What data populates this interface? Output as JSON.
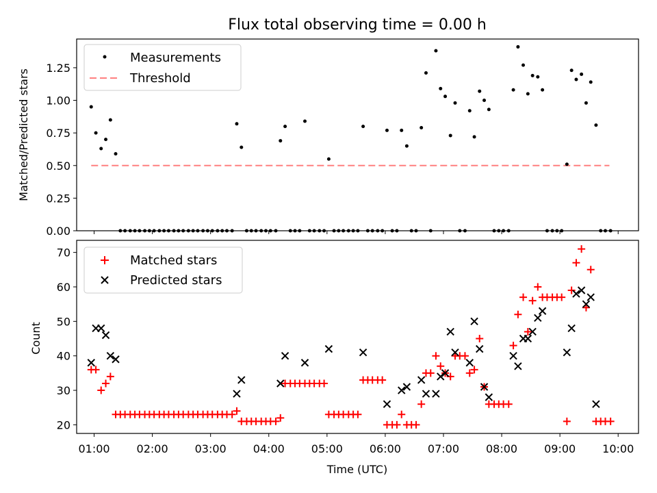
{
  "chart_data": [
    {
      "type": "scatter",
      "title": "Flux total observing time = 0.00 h",
      "xlabel": "",
      "ylabel": "Matched/Predicted stars",
      "xlim": [
        0.7,
        10.35
      ],
      "ylim": [
        0.0,
        1.47
      ],
      "yticks": [
        0.0,
        0.25,
        0.5,
        0.75,
        1.0,
        1.25
      ],
      "ytick_labels": [
        "0.00",
        "0.25",
        "0.50",
        "0.75",
        "1.00",
        "1.25"
      ],
      "legend": {
        "position": "upper-left",
        "entries": [
          "Measurements",
          "Threshold"
        ]
      },
      "threshold": {
        "name": "Threshold",
        "value": 0.5,
        "x_range": [
          0.95,
          9.85
        ],
        "color": "#ff7f7f",
        "style": "dashed"
      },
      "series": [
        {
          "name": "Measurements",
          "marker": "dot",
          "color": "#000000",
          "x": [
            0.95,
            1.03,
            1.12,
            1.2,
            1.28,
            1.37,
            1.45,
            1.53,
            1.62,
            1.7,
            1.78,
            1.87,
            1.95,
            2.03,
            2.12,
            2.2,
            2.28,
            2.37,
            2.45,
            2.53,
            2.62,
            2.7,
            2.78,
            2.87,
            2.95,
            3.03,
            3.12,
            3.2,
            3.28,
            3.37,
            3.45,
            3.53,
            3.62,
            3.7,
            3.78,
            3.87,
            3.95,
            4.03,
            4.12,
            4.2,
            4.28,
            4.37,
            4.45,
            4.53,
            4.62,
            4.7,
            4.78,
            4.87,
            4.95,
            5.03,
            5.12,
            5.2,
            5.28,
            5.37,
            5.45,
            5.53,
            5.62,
            5.7,
            5.78,
            5.87,
            5.95,
            6.03,
            6.12,
            6.2,
            6.28,
            6.37,
            6.45,
            6.53,
            6.62,
            6.7,
            6.78,
            6.87,
            6.95,
            7.03,
            7.12,
            7.2,
            7.28,
            7.37,
            7.45,
            7.53,
            7.62,
            7.7,
            7.78,
            7.87,
            7.95,
            8.03,
            8.12,
            8.2,
            8.28,
            8.37,
            8.45,
            8.53,
            8.62,
            8.7,
            8.78,
            8.87,
            8.95,
            9.03,
            9.12,
            9.2,
            9.28,
            9.37,
            9.45,
            9.53,
            9.62,
            9.7,
            9.78,
            9.87
          ],
          "y": [
            0.95,
            0.75,
            0.63,
            0.7,
            0.85,
            0.59,
            0.0,
            0.0,
            0.0,
            0.0,
            0.0,
            0.0,
            0.0,
            0.0,
            0.0,
            0.0,
            0.0,
            0.0,
            0.0,
            0.0,
            0.0,
            0.0,
            0.0,
            0.0,
            0.0,
            0.0,
            0.0,
            0.0,
            0.0,
            0.0,
            0.82,
            0.64,
            0.0,
            0.0,
            0.0,
            0.0,
            0.0,
            0.0,
            0.0,
            0.69,
            0.8,
            0.0,
            0.0,
            0.0,
            0.84,
            0.0,
            0.0,
            0.0,
            0.0,
            0.55,
            0.0,
            0.0,
            0.0,
            0.0,
            0.0,
            0.0,
            0.8,
            0.0,
            0.0,
            0.0,
            0.0,
            0.77,
            0.0,
            0.0,
            0.77,
            0.65,
            0.0,
            0.0,
            0.79,
            1.21,
            0.0,
            1.38,
            1.09,
            1.03,
            0.73,
            0.98,
            0.0,
            0.0,
            0.92,
            0.72,
            1.07,
            1.0,
            0.93,
            0.0,
            0.0,
            0.0,
            0.0,
            1.08,
            1.41,
            1.27,
            1.05,
            1.19,
            1.18,
            1.08,
            0.0,
            0.0,
            0.0,
            0.0,
            0.51,
            1.23,
            1.16,
            1.2,
            0.98,
            1.14,
            0.81,
            0.0,
            0.0,
            0.0
          ]
        }
      ]
    },
    {
      "type": "scatter",
      "title": "",
      "xlabel": "Time (UTC)",
      "ylabel": "Count",
      "xlim": [
        0.7,
        10.35
      ],
      "ylim": [
        17.5,
        73.5
      ],
      "xticks": [
        1,
        2,
        3,
        4,
        5,
        6,
        7,
        8,
        9,
        10
      ],
      "xtick_labels": [
        "01:00",
        "02:00",
        "03:00",
        "04:00",
        "05:00",
        "06:00",
        "07:00",
        "08:00",
        "09:00",
        "10:00"
      ],
      "yticks": [
        20,
        30,
        40,
        50,
        60,
        70
      ],
      "ytick_labels": [
        "20",
        "30",
        "40",
        "50",
        "60",
        "70"
      ],
      "legend": {
        "position": "upper-left",
        "entries": [
          "Matched stars",
          "Predicted stars"
        ]
      },
      "series": [
        {
          "name": "Matched stars",
          "marker": "plus",
          "color": "#ff0000",
          "x": [
            0.95,
            1.03,
            1.12,
            1.2,
            1.28,
            1.37,
            1.45,
            1.53,
            1.62,
            1.7,
            1.78,
            1.87,
            1.95,
            2.03,
            2.12,
            2.2,
            2.28,
            2.37,
            2.45,
            2.53,
            2.62,
            2.7,
            2.78,
            2.87,
            2.95,
            3.03,
            3.12,
            3.2,
            3.28,
            3.37,
            3.45,
            3.53,
            3.62,
            3.7,
            3.78,
            3.87,
            3.95,
            4.03,
            4.12,
            4.2,
            4.28,
            4.37,
            4.45,
            4.53,
            4.62,
            4.7,
            4.78,
            4.87,
            4.95,
            5.03,
            5.12,
            5.2,
            5.28,
            5.37,
            5.45,
            5.53,
            5.62,
            5.7,
            5.78,
            5.87,
            5.95,
            6.03,
            6.12,
            6.2,
            6.28,
            6.37,
            6.45,
            6.53,
            6.62,
            6.7,
            6.78,
            6.87,
            6.95,
            7.03,
            7.12,
            7.2,
            7.28,
            7.37,
            7.45,
            7.53,
            7.62,
            7.7,
            7.78,
            7.87,
            7.95,
            8.03,
            8.12,
            8.2,
            8.28,
            8.37,
            8.45,
            8.53,
            8.62,
            8.7,
            8.78,
            8.87,
            8.95,
            9.03,
            9.12,
            9.2,
            9.28,
            9.37,
            9.45,
            9.53,
            9.62,
            9.7,
            9.78,
            9.87
          ],
          "y": [
            36,
            36,
            30,
            32,
            34,
            23,
            23,
            23,
            23,
            23,
            23,
            23,
            23,
            23,
            23,
            23,
            23,
            23,
            23,
            23,
            23,
            23,
            23,
            23,
            23,
            23,
            23,
            23,
            23,
            23,
            24,
            21,
            21,
            21,
            21,
            21,
            21,
            21,
            21,
            22,
            32,
            32,
            32,
            32,
            32,
            32,
            32,
            32,
            32,
            23,
            23,
            23,
            23,
            23,
            23,
            23,
            33,
            33,
            33,
            33,
            33,
            20,
            20,
            20,
            23,
            20,
            20,
            20,
            26,
            35,
            35,
            40,
            37,
            35,
            34,
            40,
            40,
            40,
            35,
            36,
            45,
            31,
            26,
            26,
            26,
            26,
            26,
            43,
            52,
            57,
            47,
            56,
            60,
            57,
            57,
            57,
            57,
            57,
            21,
            59,
            67,
            71,
            54,
            65,
            21,
            21,
            21,
            21
          ]
        },
        {
          "name": "Predicted stars",
          "marker": "x",
          "color": "#000000",
          "x": [
            0.95,
            1.03,
            1.12,
            1.2,
            1.28,
            1.37,
            3.45,
            3.53,
            4.2,
            4.28,
            4.62,
            5.03,
            5.62,
            6.03,
            6.28,
            6.37,
            6.62,
            6.7,
            6.87,
            6.95,
            7.03,
            7.12,
            7.2,
            7.45,
            7.53,
            7.62,
            7.7,
            7.78,
            8.2,
            8.28,
            8.37,
            8.45,
            8.53,
            8.62,
            8.7,
            9.12,
            9.2,
            9.28,
            9.37,
            9.45,
            9.53,
            9.62
          ],
          "y": [
            38,
            48,
            48,
            46,
            40,
            39,
            29,
            33,
            32,
            40,
            38,
            42,
            41,
            26,
            30,
            31,
            33,
            29,
            29,
            34,
            35,
            47,
            41,
            38,
            50,
            42,
            31,
            28,
            40,
            37,
            45,
            45,
            47,
            51,
            53,
            41,
            48,
            58,
            59,
            55,
            57,
            26
          ]
        }
      ]
    }
  ]
}
